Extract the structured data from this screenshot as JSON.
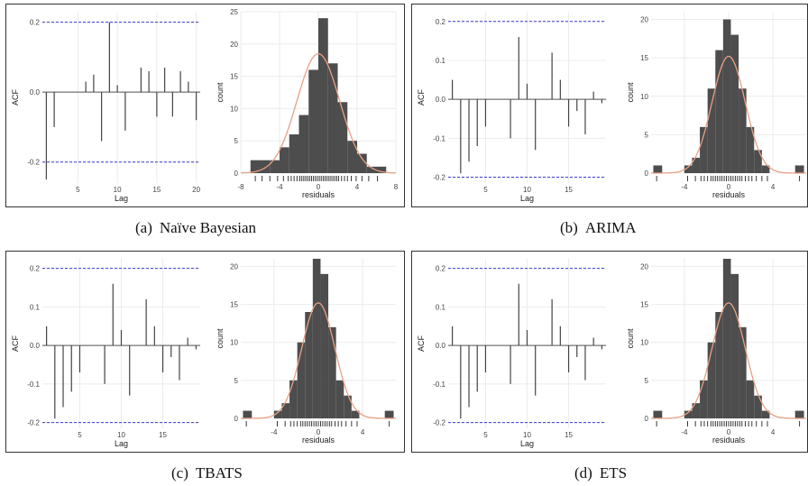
{
  "colors": {
    "bar": "#4d4d4d",
    "density": "#e8a084",
    "ci_line": "#3a3acc",
    "acf_line": "#444444",
    "grid": "#ebebeb",
    "rug": "#222222"
  },
  "panels": [
    {
      "caption_label": "(a)",
      "caption_text": "Naïve Bayesian",
      "chart_data": [
        {
          "type": "bar",
          "title": "",
          "xlabel": "Lag",
          "ylabel": "ACF",
          "xlim": [
            0.5,
            20.5
          ],
          "ylim": [
            -0.26,
            0.23
          ],
          "xticks": [
            5,
            10,
            15,
            20
          ],
          "yticks": [
            -0.2,
            0.0,
            0.2
          ],
          "ytick_labels": [
            "-0.2",
            "0.0",
            "0.2"
          ],
          "ci": 0.2,
          "x": [
            1,
            2,
            3,
            4,
            5,
            6,
            7,
            8,
            9,
            10,
            11,
            12,
            13,
            14,
            15,
            16,
            17,
            18,
            19,
            20
          ],
          "values": [
            -0.25,
            -0.1,
            0.0,
            0.0,
            0.0,
            0.03,
            0.05,
            -0.14,
            0.2,
            0.02,
            -0.11,
            0.0,
            0.07,
            0.06,
            -0.07,
            0.07,
            -0.07,
            0.06,
            0.03,
            -0.08
          ]
        },
        {
          "type": "histogram",
          "title": "",
          "xlabel": "residuals",
          "ylabel": "count",
          "xlim": [
            -8,
            8
          ],
          "ylim": [
            0,
            25
          ],
          "xticks": [
            -8,
            -4,
            0,
            4,
            8
          ],
          "yticks": [
            0,
            5,
            10,
            15,
            20,
            25
          ],
          "bins": [
            {
              "x0": -7,
              "x1": -5,
              "count": 2
            },
            {
              "x0": -5,
              "x1": -4,
              "count": 2
            },
            {
              "x0": -4,
              "x1": -3,
              "count": 4
            },
            {
              "x0": -3,
              "x1": -2,
              "count": 6
            },
            {
              "x0": -2,
              "x1": -1,
              "count": 9
            },
            {
              "x0": -1,
              "x1": 0,
              "count": 16
            },
            {
              "x0": 0,
              "x1": 1,
              "count": 24
            },
            {
              "x0": 1,
              "x1": 2,
              "count": 17
            },
            {
              "x0": 2,
              "x1": 3,
              "count": 11
            },
            {
              "x0": 3,
              "x1": 4,
              "count": 5
            },
            {
              "x0": 4,
              "x1": 5,
              "count": 3
            },
            {
              "x0": 5,
              "x1": 6,
              "count": 1
            },
            {
              "x0": 6,
              "x1": 7,
              "count": 1
            }
          ],
          "density": {
            "mean": 0.0,
            "sd": 2.2,
            "peak": 18.5
          },
          "rug": [
            -6.5,
            -5.8,
            -5.0,
            -4.2,
            -3.6,
            -3.1,
            -2.8,
            -2.5,
            -2.2,
            -1.9,
            -1.7,
            -1.5,
            -1.3,
            -1.1,
            -0.9,
            -0.7,
            -0.5,
            -0.3,
            -0.1,
            0.1,
            0.3,
            0.5,
            0.7,
            0.9,
            1.1,
            1.3,
            1.5,
            1.7,
            1.9,
            2.1,
            2.4,
            2.7,
            3.0,
            3.4,
            3.9,
            4.5,
            5.2,
            6.1
          ]
        }
      ]
    },
    {
      "caption_label": "(b)",
      "caption_text": "ARIMA",
      "chart_data": [
        {
          "type": "bar",
          "title": "",
          "xlabel": "Lag",
          "ylabel": "ACF",
          "xlim": [
            0.5,
            19.5
          ],
          "ylim": [
            -0.215,
            0.225
          ],
          "xticks": [
            5,
            10,
            15
          ],
          "yticks": [
            -0.2,
            -0.1,
            0.0,
            0.1,
            0.2
          ],
          "ytick_labels": [
            "-0.2",
            "-0.1",
            "0.0",
            "0.1",
            "0.2"
          ],
          "ci": 0.2,
          "x": [
            1,
            2,
            3,
            4,
            5,
            6,
            7,
            8,
            9,
            10,
            11,
            12,
            13,
            14,
            15,
            16,
            17,
            18,
            19
          ],
          "values": [
            0.05,
            -0.19,
            -0.16,
            -0.12,
            -0.07,
            0.0,
            0.0,
            -0.1,
            0.16,
            0.04,
            -0.13,
            0.0,
            0.12,
            0.05,
            -0.07,
            -0.03,
            -0.09,
            0.02,
            -0.01
          ]
        },
        {
          "type": "histogram",
          "title": "",
          "xlabel": "residuals",
          "ylabel": "count",
          "xlim": [
            -7,
            7
          ],
          "ylim": [
            0,
            21
          ],
          "xticks": [
            -4,
            0,
            4
          ],
          "yticks": [
            0,
            5,
            10,
            15,
            20
          ],
          "bins": [
            {
              "x0": -6.8,
              "x1": -6.0,
              "count": 1
            },
            {
              "x0": -4.0,
              "x1": -3.3,
              "count": 1
            },
            {
              "x0": -3.3,
              "x1": -2.6,
              "count": 2
            },
            {
              "x0": -2.6,
              "x1": -1.9,
              "count": 6
            },
            {
              "x0": -1.9,
              "x1": -1.2,
              "count": 11
            },
            {
              "x0": -1.2,
              "x1": -0.5,
              "count": 16
            },
            {
              "x0": -0.5,
              "x1": 0.2,
              "count": 20
            },
            {
              "x0": 0.2,
              "x1": 0.9,
              "count": 18
            },
            {
              "x0": 0.9,
              "x1": 1.6,
              "count": 11
            },
            {
              "x0": 1.6,
              "x1": 2.3,
              "count": 6
            },
            {
              "x0": 2.3,
              "x1": 3.0,
              "count": 3
            },
            {
              "x0": 3.0,
              "x1": 3.7,
              "count": 1
            },
            {
              "x0": 6.0,
              "x1": 6.8,
              "count": 1
            }
          ],
          "density": {
            "mean": 0.0,
            "sd": 1.5,
            "peak": 15.2
          },
          "rug": [
            -6.5,
            -3.7,
            -3.0,
            -2.5,
            -2.2,
            -1.9,
            -1.6,
            -1.4,
            -1.2,
            -1.0,
            -0.8,
            -0.6,
            -0.4,
            -0.2,
            0.0,
            0.2,
            0.4,
            0.6,
            0.8,
            1.0,
            1.2,
            1.5,
            1.8,
            2.1,
            2.5,
            3.0,
            3.5,
            6.4
          ]
        }
      ]
    },
    {
      "caption_label": "(c)",
      "caption_text": "TBATS",
      "chart_data": [
        {
          "type": "bar",
          "title": "",
          "xlabel": "Lag",
          "ylabel": "ACF",
          "xlim": [
            0.5,
            19.5
          ],
          "ylim": [
            -0.215,
            0.225
          ],
          "xticks": [
            5,
            10,
            15
          ],
          "yticks": [
            -0.2,
            -0.1,
            0.0,
            0.1,
            0.2
          ],
          "ytick_labels": [
            "-0.2",
            "-0.1",
            "0.0",
            "0.1",
            "0.2"
          ],
          "ci": 0.2,
          "x": [
            1,
            2,
            3,
            4,
            5,
            6,
            7,
            8,
            9,
            10,
            11,
            12,
            13,
            14,
            15,
            16,
            17,
            18,
            19
          ],
          "values": [
            0.05,
            -0.19,
            -0.16,
            -0.12,
            -0.07,
            0.0,
            0.0,
            -0.1,
            0.16,
            0.04,
            -0.13,
            0.0,
            0.12,
            0.05,
            -0.07,
            -0.03,
            -0.09,
            0.02,
            -0.01
          ]
        },
        {
          "type": "histogram",
          "title": "",
          "xlabel": "residuals",
          "ylabel": "count",
          "xlim": [
            -7,
            7
          ],
          "ylim": [
            0,
            21
          ],
          "xticks": [
            -4,
            0,
            4
          ],
          "yticks": [
            0,
            5,
            10,
            15,
            20
          ],
          "bins": [
            {
              "x0": -6.8,
              "x1": -6.0,
              "count": 1
            },
            {
              "x0": -4.0,
              "x1": -3.3,
              "count": 1
            },
            {
              "x0": -3.3,
              "x1": -2.6,
              "count": 2
            },
            {
              "x0": -2.6,
              "x1": -1.9,
              "count": 5
            },
            {
              "x0": -1.9,
              "x1": -1.2,
              "count": 10
            },
            {
              "x0": -1.2,
              "x1": -0.5,
              "count": 14
            },
            {
              "x0": -0.5,
              "x1": 0.2,
              "count": 21
            },
            {
              "x0": 0.2,
              "x1": 0.9,
              "count": 19
            },
            {
              "x0": 0.9,
              "x1": 1.6,
              "count": 12
            },
            {
              "x0": 1.6,
              "x1": 2.3,
              "count": 5
            },
            {
              "x0": 2.3,
              "x1": 3.0,
              "count": 3
            },
            {
              "x0": 3.0,
              "x1": 3.7,
              "count": 1
            },
            {
              "x0": 6.0,
              "x1": 6.8,
              "count": 1
            }
          ],
          "density": {
            "mean": 0.0,
            "sd": 1.5,
            "peak": 15.2
          },
          "rug": [
            -6.5,
            -3.7,
            -3.0,
            -2.5,
            -2.2,
            -1.9,
            -1.6,
            -1.4,
            -1.2,
            -1.0,
            -0.8,
            -0.6,
            -0.4,
            -0.2,
            0.0,
            0.2,
            0.4,
            0.6,
            0.8,
            1.0,
            1.2,
            1.5,
            1.8,
            2.1,
            2.5,
            3.0,
            3.5,
            6.4
          ]
        }
      ]
    },
    {
      "caption_label": "(d)",
      "caption_text": "ETS",
      "chart_data": [
        {
          "type": "bar",
          "title": "",
          "xlabel": "Lag",
          "ylabel": "ACF",
          "xlim": [
            0.5,
            19.5
          ],
          "ylim": [
            -0.215,
            0.225
          ],
          "xticks": [
            5,
            10,
            15
          ],
          "yticks": [
            -0.2,
            -0.1,
            0.0,
            0.1,
            0.2
          ],
          "ytick_labels": [
            "-0.2",
            "-0.1",
            "0.0",
            "0.1",
            "0.2"
          ],
          "ci": 0.2,
          "x": [
            1,
            2,
            3,
            4,
            5,
            6,
            7,
            8,
            9,
            10,
            11,
            12,
            13,
            14,
            15,
            16,
            17,
            18,
            19
          ],
          "values": [
            0.05,
            -0.19,
            -0.16,
            -0.12,
            -0.07,
            0.0,
            0.0,
            -0.1,
            0.16,
            0.04,
            -0.13,
            0.0,
            0.12,
            0.05,
            -0.07,
            -0.03,
            -0.09,
            0.02,
            -0.01
          ]
        },
        {
          "type": "histogram",
          "title": "",
          "xlabel": "residuals",
          "ylabel": "count",
          "xlim": [
            -7,
            7
          ],
          "ylim": [
            0,
            21
          ],
          "xticks": [
            -4,
            0,
            4
          ],
          "yticks": [
            0,
            5,
            10,
            15,
            20
          ],
          "bins": [
            {
              "x0": -6.8,
              "x1": -6.0,
              "count": 1
            },
            {
              "x0": -4.0,
              "x1": -3.3,
              "count": 1
            },
            {
              "x0": -3.3,
              "x1": -2.6,
              "count": 2
            },
            {
              "x0": -2.6,
              "x1": -1.9,
              "count": 5
            },
            {
              "x0": -1.9,
              "x1": -1.2,
              "count": 10
            },
            {
              "x0": -1.2,
              "x1": -0.5,
              "count": 14
            },
            {
              "x0": -0.5,
              "x1": 0.2,
              "count": 21
            },
            {
              "x0": 0.2,
              "x1": 0.9,
              "count": 19
            },
            {
              "x0": 0.9,
              "x1": 1.6,
              "count": 12
            },
            {
              "x0": 1.6,
              "x1": 2.3,
              "count": 5
            },
            {
              "x0": 2.3,
              "x1": 3.0,
              "count": 3
            },
            {
              "x0": 3.0,
              "x1": 3.7,
              "count": 1
            },
            {
              "x0": 6.0,
              "x1": 6.8,
              "count": 1
            }
          ],
          "density": {
            "mean": 0.0,
            "sd": 1.5,
            "peak": 15.2
          },
          "rug": [
            -6.5,
            -3.7,
            -3.0,
            -2.5,
            -2.2,
            -1.9,
            -1.6,
            -1.4,
            -1.2,
            -1.0,
            -0.8,
            -0.6,
            -0.4,
            -0.2,
            0.0,
            0.2,
            0.4,
            0.6,
            0.8,
            1.0,
            1.2,
            1.5,
            1.8,
            2.1,
            2.5,
            3.0,
            3.5,
            6.4
          ]
        }
      ]
    }
  ]
}
